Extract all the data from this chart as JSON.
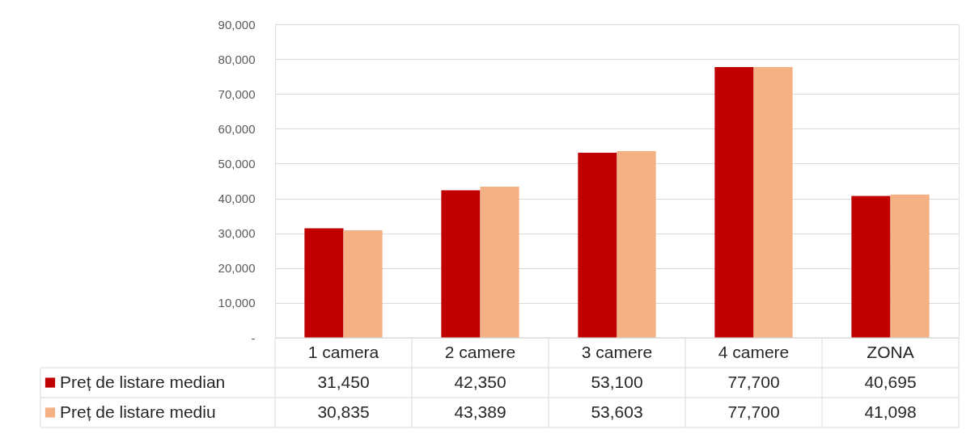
{
  "chart_data": {
    "type": "bar",
    "categories": [
      "1 camera",
      "2 camere",
      "3 camere",
      "4 camere",
      "ZONA"
    ],
    "series": [
      {
        "name": "Preț de listare median",
        "color": "#c00000",
        "values": [
          31450,
          42350,
          53100,
          77700,
          40695
        ],
        "value_labels": [
          "31,450",
          "42,350",
          "53,100",
          "77,700",
          "40,695"
        ]
      },
      {
        "name": "Preț de listare mediu",
        "color": "#f4b183",
        "values": [
          30835,
          43389,
          53603,
          77700,
          41098
        ],
        "value_labels": [
          "30,835",
          "43,389",
          "53,603",
          "77,700",
          "41,098"
        ]
      }
    ],
    "ylim": [
      0,
      90000
    ],
    "yticks": [
      {
        "value": 0,
        "label": "-"
      },
      {
        "value": 10000,
        "label": "10,000"
      },
      {
        "value": 20000,
        "label": "20,000"
      },
      {
        "value": 30000,
        "label": "30,000"
      },
      {
        "value": 40000,
        "label": "40,000"
      },
      {
        "value": 50000,
        "label": "50,000"
      },
      {
        "value": 60000,
        "label": "60,000"
      },
      {
        "value": 70000,
        "label": "70,000"
      },
      {
        "value": 80000,
        "label": "80,000"
      },
      {
        "value": 90000,
        "label": "90,000"
      }
    ],
    "grid": "y",
    "legend": "bottom"
  }
}
